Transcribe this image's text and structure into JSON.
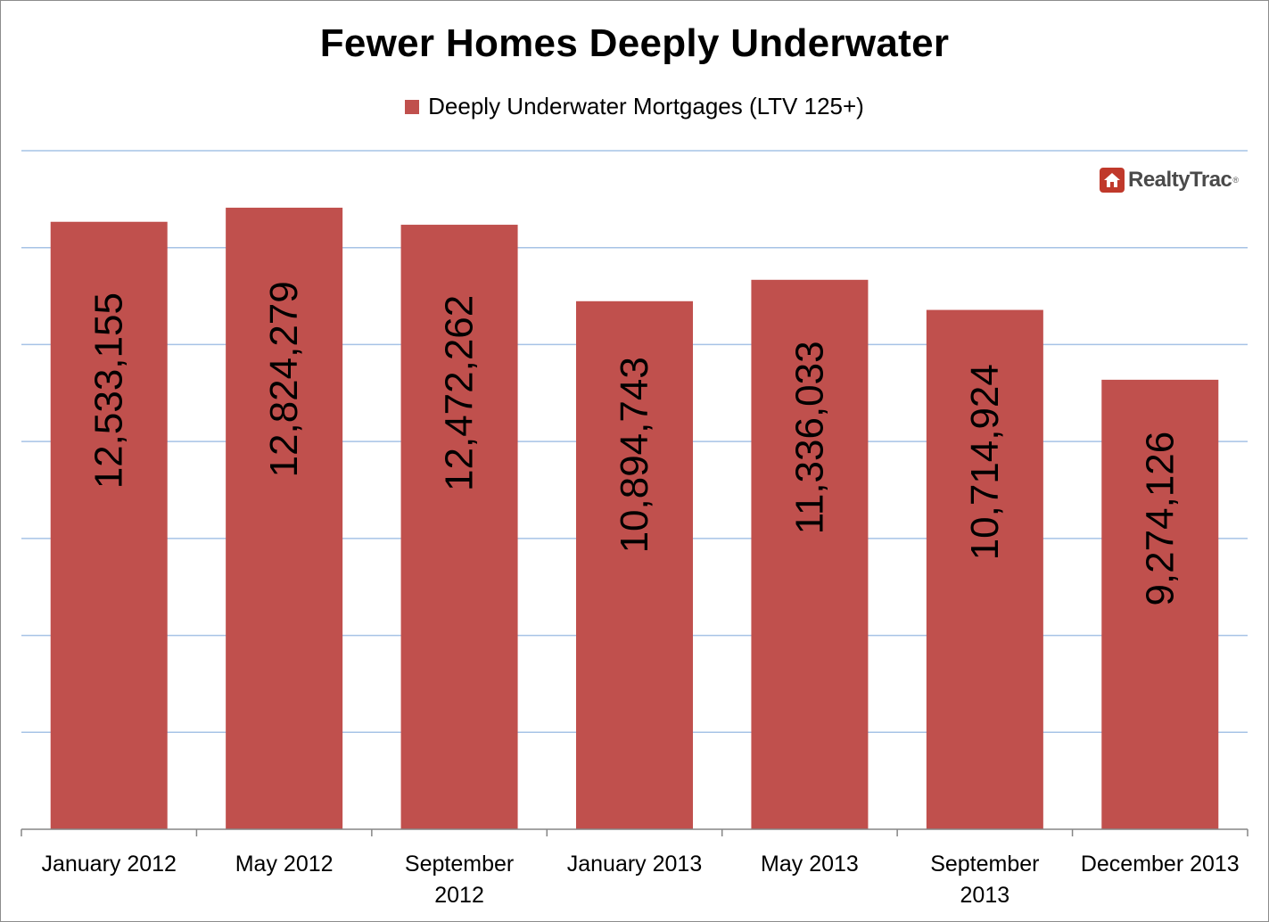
{
  "chart_data": {
    "type": "bar",
    "title": "Fewer Homes Deeply Underwater",
    "categories": [
      "January 2012",
      "May 2012",
      "September 2012",
      "January 2013",
      "May 2013",
      "September 2013",
      "December 2013"
    ],
    "category_lines": [
      [
        "January 2012"
      ],
      [
        "May 2012"
      ],
      [
        "September",
        "2012"
      ],
      [
        "January 2013"
      ],
      [
        "May 2013"
      ],
      [
        "September",
        "2013"
      ],
      [
        "December 2013"
      ]
    ],
    "series": [
      {
        "name": "Deeply Underwater Mortgages (LTV 125+)",
        "values": [
          12533155,
          12824279,
          12472262,
          10894743,
          11336033,
          10714924,
          9274126
        ],
        "labels": [
          "12,533,155",
          "12,824,279",
          "12,472,262",
          "10,894,743",
          "11,336,033",
          "10,714,924",
          "9,274,126"
        ],
        "color": "#c0504d"
      }
    ],
    "ylim": [
      0,
      14000000
    ],
    "grid": true,
    "grid_color": "#a6c3e6",
    "legend_position": "top"
  },
  "logo": {
    "text": "RealtyTrac",
    "mark": "®",
    "icon": "house-icon"
  }
}
